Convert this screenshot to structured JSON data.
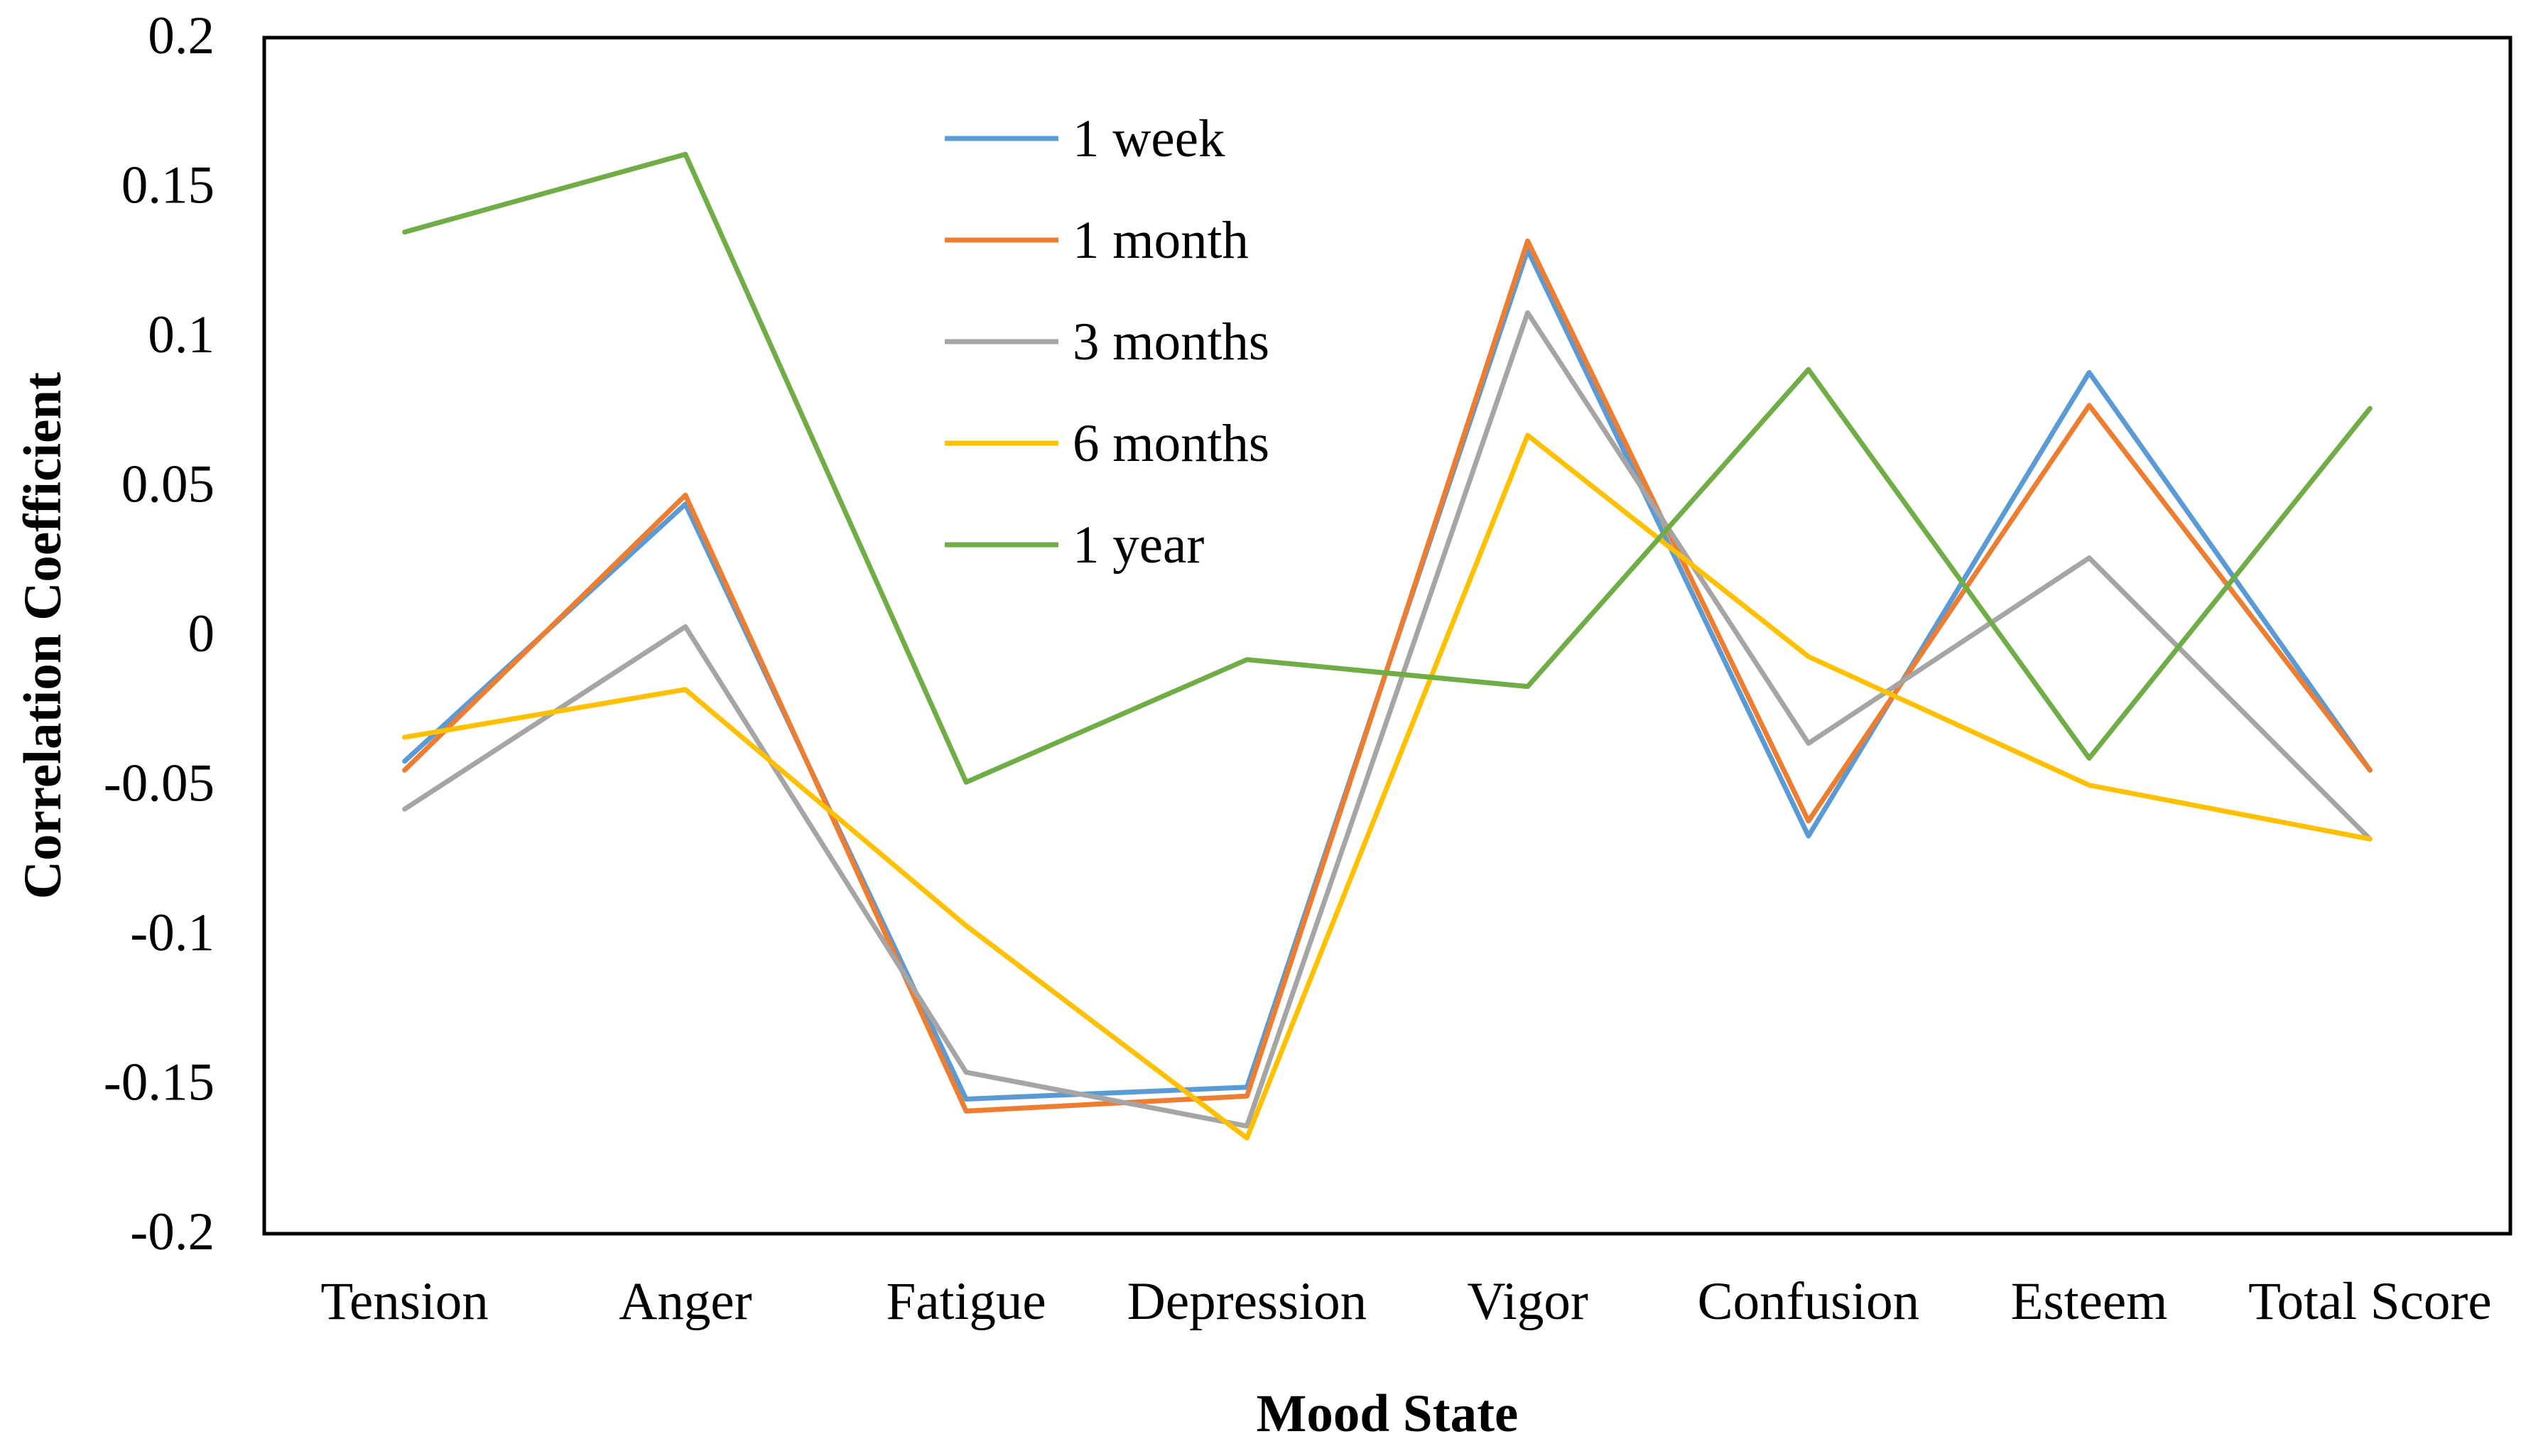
{
  "chart_data": {
    "type": "line",
    "title": "",
    "xlabel": "Mood State",
    "ylabel": "Correlation Coefficient",
    "categories": [
      "Tension",
      "Anger",
      "Fatigue",
      "Depression",
      "Vigor",
      "Confusion",
      "Esteem",
      "Total Score"
    ],
    "ylim": [
      -0.2,
      0.2
    ],
    "yticks": [
      0.2,
      0.15,
      0.1,
      0.05,
      0,
      -0.05,
      -0.1,
      -0.15,
      -0.2
    ],
    "ytick_labels": [
      "0.2",
      "0.15",
      "0.1",
      "0.05",
      "0",
      "-0.05",
      "-0.1",
      "-0.15",
      "-0.2"
    ],
    "grid": false,
    "legend_position": "top-center",
    "series": [
      {
        "name": "1 week",
        "color": "#5B9BD5",
        "values": [
          -0.042,
          0.044,
          -0.155,
          -0.151,
          0.129,
          -0.067,
          0.088,
          -0.045
        ]
      },
      {
        "name": "1 month",
        "color": "#ED7D31",
        "values": [
          -0.045,
          0.047,
          -0.159,
          -0.154,
          0.132,
          -0.062,
          0.077,
          -0.045
        ]
      },
      {
        "name": "3 months",
        "color": "#A5A5A5",
        "values": [
          -0.058,
          0.003,
          -0.146,
          -0.164,
          0.108,
          -0.036,
          0.026,
          -0.068
        ]
      },
      {
        "name": "6 months",
        "color": "#FFC000",
        "values": [
          -0.034,
          -0.018,
          -0.097,
          -0.168,
          0.067,
          -0.007,
          -0.05,
          -0.068
        ]
      },
      {
        "name": "1 year",
        "color": "#70AD47",
        "values": [
          0.135,
          0.161,
          -0.049,
          -0.008,
          -0.017,
          0.089,
          -0.041,
          0.076
        ]
      }
    ]
  }
}
